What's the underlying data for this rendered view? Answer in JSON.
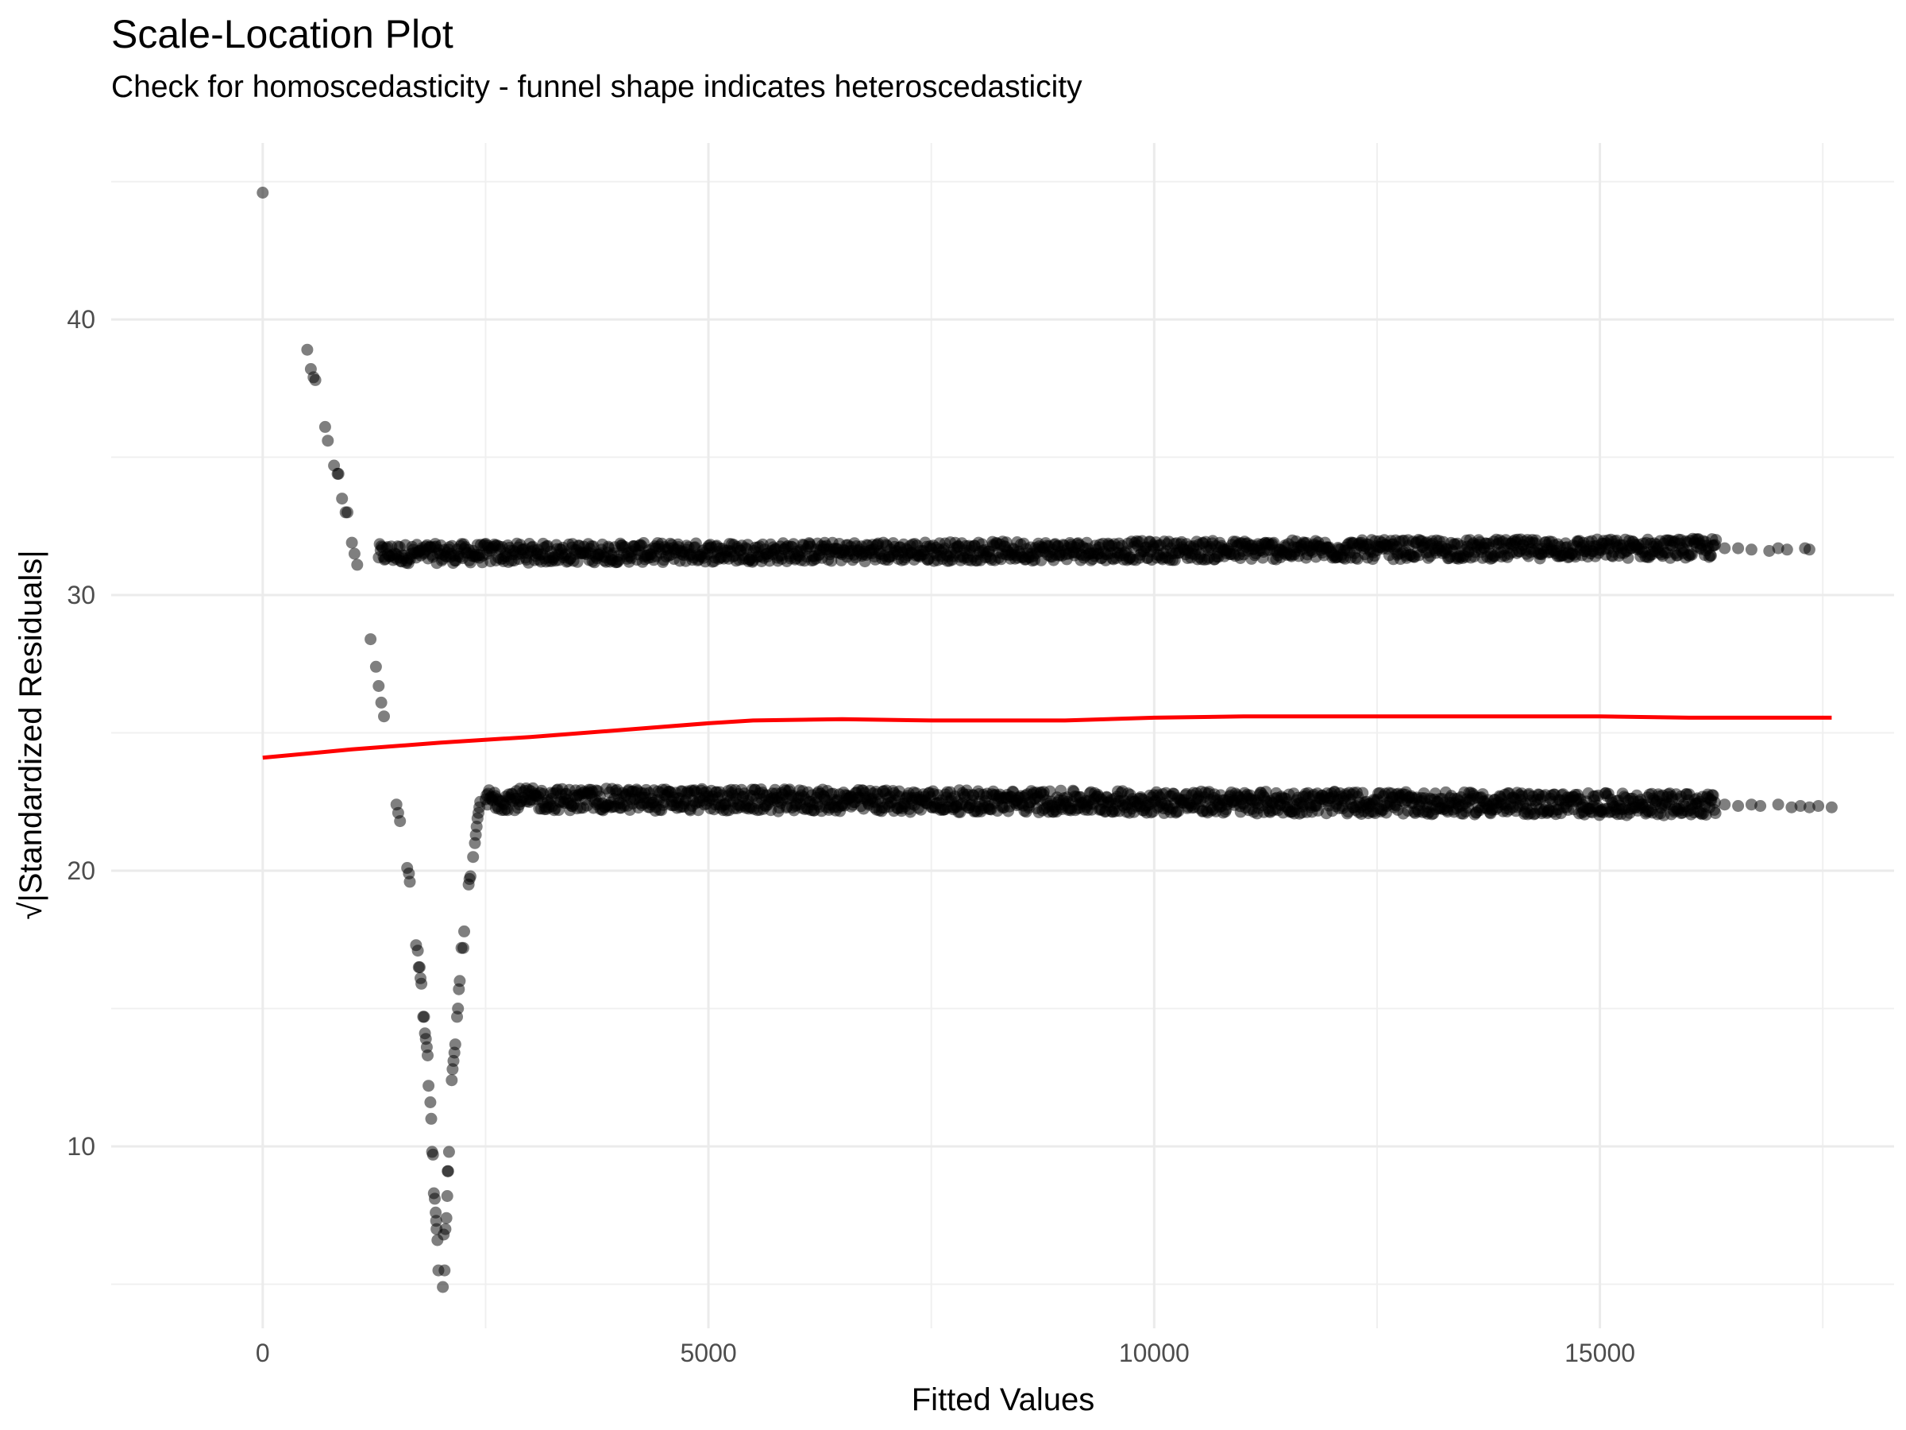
{
  "chart_data": {
    "type": "scatter",
    "title": "Scale-Location Plot",
    "subtitle": "Check for homoscedasticity - funnel shape indicates heteroscedasticity",
    "xlabel": "Fitted Values",
    "ylabel": "√|Standardized Residuals|",
    "xlim": [
      -1700,
      18300
    ],
    "ylim": [
      3.4,
      46.4
    ],
    "x_ticks": [
      0,
      5000,
      10000,
      15000
    ],
    "x_tick_labels": [
      "0",
      "5000",
      "10000",
      "15000"
    ],
    "y_ticks": [
      10,
      20,
      30,
      40
    ],
    "y_tick_labels": [
      "10",
      "20",
      "30",
      "40"
    ],
    "grid": true,
    "point_color": "#000000",
    "point_opacity": 0.5,
    "trend_color": "#ff0000",
    "series": [
      {
        "name": "residuals-outlier-branch",
        "points": [
          [
            0,
            44.6
          ],
          [
            500,
            38.9
          ],
          [
            540,
            38.2
          ],
          [
            570,
            37.9
          ],
          [
            590,
            37.8
          ],
          [
            700,
            36.1
          ],
          [
            730,
            35.6
          ],
          [
            800,
            34.7
          ],
          [
            840,
            34.4
          ],
          [
            850,
            34.4
          ],
          [
            890,
            33.5
          ],
          [
            930,
            33.0
          ],
          [
            950,
            33.0
          ],
          [
            1000,
            31.9
          ],
          [
            1030,
            31.5
          ],
          [
            1060,
            31.1
          ],
          [
            1210,
            28.4
          ],
          [
            1270,
            27.4
          ],
          [
            1300,
            26.7
          ],
          [
            1330,
            26.1
          ],
          [
            1360,
            25.6
          ],
          [
            1500,
            22.4
          ],
          [
            1520,
            22.1
          ],
          [
            1540,
            21.8
          ],
          [
            1620,
            20.1
          ],
          [
            1640,
            19.9
          ],
          [
            1650,
            19.6
          ],
          [
            1720,
            17.3
          ],
          [
            1740,
            17.1
          ],
          [
            1750,
            16.5
          ],
          [
            1760,
            16.5
          ],
          [
            1770,
            16.1
          ],
          [
            1780,
            15.9
          ],
          [
            1800,
            14.7
          ],
          [
            1810,
            14.7
          ],
          [
            1820,
            14.1
          ],
          [
            1830,
            13.9
          ],
          [
            1840,
            13.6
          ],
          [
            1850,
            13.3
          ],
          [
            1860,
            12.2
          ],
          [
            1880,
            11.6
          ],
          [
            1890,
            11.0
          ],
          [
            1900,
            9.8
          ],
          [
            1910,
            9.7
          ],
          [
            1920,
            8.3
          ],
          [
            1930,
            8.1
          ],
          [
            1940,
            7.6
          ],
          [
            1945,
            7.3
          ],
          [
            1950,
            7.0
          ],
          [
            1960,
            6.6
          ],
          [
            1970,
            5.5
          ],
          [
            2040,
            5.5
          ],
          [
            2020,
            4.9
          ],
          [
            2030,
            6.8
          ],
          [
            2050,
            7.0
          ],
          [
            2060,
            7.4
          ],
          [
            2070,
            8.2
          ],
          [
            2075,
            9.1
          ],
          [
            2080,
            9.1
          ],
          [
            2090,
            9.8
          ],
          [
            2120,
            12.4
          ],
          [
            2130,
            12.8
          ],
          [
            2140,
            13.1
          ],
          [
            2150,
            13.4
          ],
          [
            2160,
            13.7
          ],
          [
            2180,
            14.7
          ],
          [
            2190,
            15.0
          ],
          [
            2200,
            15.7
          ],
          [
            2210,
            16.0
          ],
          [
            2230,
            17.2
          ],
          [
            2250,
            17.2
          ],
          [
            2260,
            17.8
          ],
          [
            2310,
            19.5
          ],
          [
            2320,
            19.7
          ],
          [
            2330,
            19.8
          ],
          [
            2360,
            20.5
          ],
          [
            2380,
            21.0
          ],
          [
            2390,
            21.3
          ],
          [
            2400,
            21.6
          ],
          [
            2410,
            21.9
          ],
          [
            2420,
            22.1
          ],
          [
            2430,
            22.3
          ],
          [
            2440,
            22.5
          ]
        ]
      }
    ],
    "bands": [
      {
        "name": "upper-band",
        "x_start": 1300,
        "x_end": 16300,
        "y_center_start": 31.5,
        "y_center_end": 31.7,
        "spread": 0.35
      },
      {
        "name": "lower-band",
        "x_start": 2500,
        "x_end": 16300,
        "y_center_start": 22.6,
        "y_center_end": 22.4,
        "spread": 0.4
      }
    ],
    "sparse_points": [
      [
        16400,
        31.7
      ],
      [
        16550,
        31.7
      ],
      [
        16700,
        31.65
      ],
      [
        16900,
        31.6
      ],
      [
        17000,
        31.7
      ],
      [
        17100,
        31.65
      ],
      [
        17300,
        31.7
      ],
      [
        17350,
        31.65
      ],
      [
        16400,
        22.4
      ],
      [
        16550,
        22.35
      ],
      [
        16700,
        22.4
      ],
      [
        16800,
        22.35
      ],
      [
        17000,
        22.4
      ],
      [
        17150,
        22.3
      ],
      [
        17250,
        22.35
      ],
      [
        17350,
        22.3
      ],
      [
        17450,
        22.35
      ],
      [
        17600,
        22.3
      ]
    ],
    "trend_line": [
      [
        0,
        24.1
      ],
      [
        1000,
        24.4
      ],
      [
        2000,
        24.65
      ],
      [
        3000,
        24.85
      ],
      [
        4000,
        25.1
      ],
      [
        5000,
        25.35
      ],
      [
        5500,
        25.45
      ],
      [
        6500,
        25.5
      ],
      [
        7500,
        25.45
      ],
      [
        9000,
        25.45
      ],
      [
        10000,
        25.55
      ],
      [
        11000,
        25.6
      ],
      [
        12500,
        25.6
      ],
      [
        14000,
        25.6
      ],
      [
        15000,
        25.6
      ],
      [
        16000,
        25.55
      ],
      [
        17600,
        25.55
      ]
    ]
  }
}
